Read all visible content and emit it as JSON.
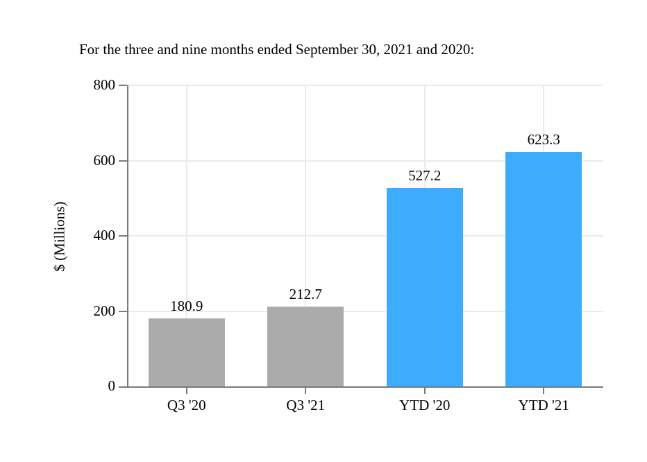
{
  "chart_data": {
    "type": "bar",
    "title": "For the three and nine months ended September 30, 2021 and 2020:",
    "ylabel": "$ (Millions)",
    "xlabel": "",
    "categories": [
      "Q3 '20",
      "Q3 '21",
      "YTD '20",
      "YTD '21"
    ],
    "values": [
      180.9,
      212.7,
      527.2,
      623.3
    ],
    "value_labels": [
      "180.9",
      "212.7",
      "527.2",
      "623.3"
    ],
    "bar_colors": [
      "#ABABAB",
      "#ABABAB",
      "#3EACFC",
      "#3EACFC"
    ],
    "ylim": [
      0,
      800
    ],
    "yticks": [
      0,
      200,
      400,
      600,
      800
    ],
    "ytick_labels": [
      "0",
      "200",
      "400",
      "600",
      "800"
    ],
    "grid": {
      "horizontal": true,
      "vertical": true,
      "color": "#EBEBEB"
    },
    "axis_color": "#7A7A7A",
    "text_color": "#000000",
    "background_color": "#FFFFFF",
    "legend": "none"
  }
}
